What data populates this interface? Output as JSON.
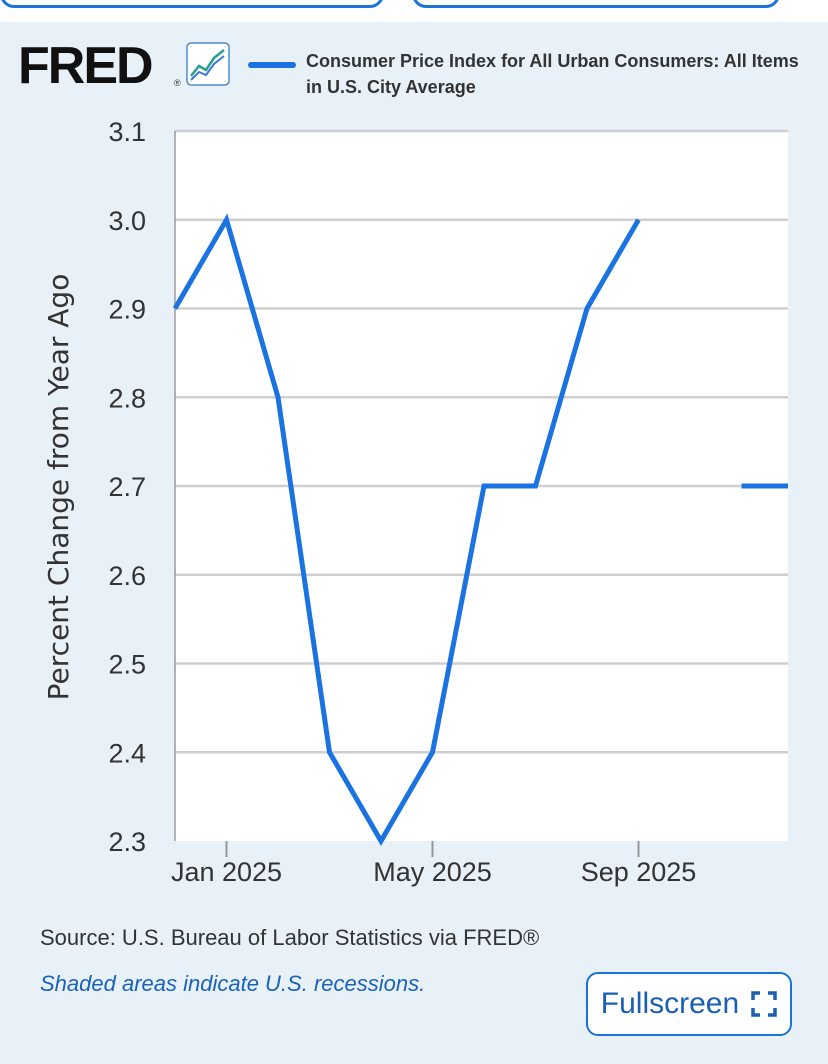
{
  "header": {
    "logo_text": "FRED",
    "logo_reg": "®",
    "series_label": "Consumer Price Index for All Urban Consumers: All Items in U.S. City Average"
  },
  "colors": {
    "line": "#1a73e0",
    "background": "#e8f0f8",
    "plot_background": "#ffffff",
    "grid": "#cccccc",
    "link": "#1a63b8"
  },
  "chart_data": {
    "type": "line",
    "ylabel": "Percent Change from Year Ago",
    "xlabel": "",
    "ylim": [
      2.3,
      3.1
    ],
    "yticks": [
      "2.3",
      "2.4",
      "2.5",
      "2.6",
      "2.7",
      "2.8",
      "2.9",
      "3.0",
      "3.1"
    ],
    "xticks": [
      {
        "date": "2025-01",
        "label": "Jan 2025"
      },
      {
        "date": "2025-05",
        "label": "May 2025"
      },
      {
        "date": "2025-09",
        "label": "Sep 2025"
      }
    ],
    "grid": true,
    "series": [
      {
        "name": "Consumer Price Index for All Urban Consumers: All Items in U.S. City Average",
        "points": [
          {
            "date": "2024-12",
            "value": 2.9
          },
          {
            "date": "2025-01",
            "value": 3.0
          },
          {
            "date": "2025-02",
            "value": 2.8
          },
          {
            "date": "2025-03",
            "value": 2.4
          },
          {
            "date": "2025-04",
            "value": 2.3
          },
          {
            "date": "2025-05",
            "value": 2.4
          },
          {
            "date": "2025-06",
            "value": 2.7
          },
          {
            "date": "2025-07",
            "value": 2.7
          },
          {
            "date": "2025-08",
            "value": 2.9
          },
          {
            "date": "2025-09",
            "value": 3.0
          },
          {
            "date": "2025-10",
            "value": null
          },
          {
            "date": "2025-11",
            "value": 2.7
          },
          {
            "date": "2025-12",
            "value": 2.7
          }
        ]
      }
    ]
  },
  "footer": {
    "source": "Source: U.S. Bureau of Labor Statistics via FRED®",
    "recession_note": "Shaded areas indicate U.S. recessions.",
    "fullscreen_label": "Fullscreen"
  }
}
